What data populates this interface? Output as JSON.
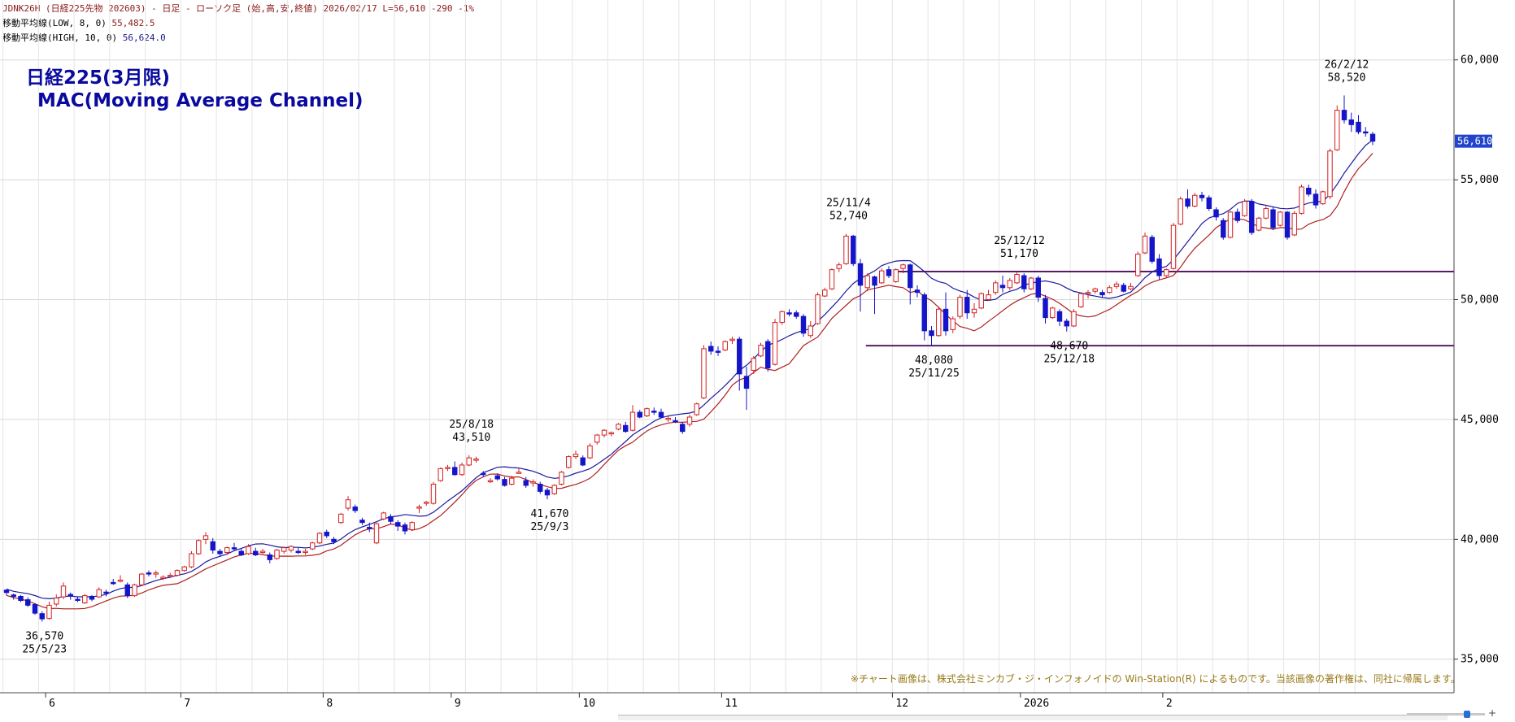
{
  "header": {
    "line1": "JDNK26H (日経225先物 202603) - 日足 - ローソク足 (始,高,安,終値)  2026/02/17 L=56,610 -290 -1%",
    "line2_label": "移動平均線(LOW, 8, 0)",
    "line2_value": "55,482.5",
    "line3_label": "移動平均線(HIGH, 10, 0)",
    "line3_value": "56,624.0"
  },
  "title": {
    "line1": "日経225(3月限)",
    "line2": "MAC(Moving Average Channel)"
  },
  "copyright": "※チャート画像は、株式会社ミンカブ・ジ・インフォノイドの Win-Station(R) によるものです。当該画像の著作権は、同社に帰属します。",
  "colors": {
    "up": "#d22020",
    "down": "#1414c8",
    "ma_high": "#1a1aa0",
    "ma_low": "#b02020",
    "level_line": "#5a1a6a",
    "grid": "#d8d8d8",
    "last_price_bg": "#2244cc"
  },
  "chart_data": {
    "type": "candlestick",
    "y_range": [
      33600,
      62500
    ],
    "y_ticks": [
      {
        "value": 35000,
        "label": "35,000"
      },
      {
        "value": 40000,
        "label": "40,000"
      },
      {
        "value": 45000,
        "label": "45,000"
      },
      {
        "value": 50000,
        "label": "50,000"
      },
      {
        "value": 55000,
        "label": "55,000"
      },
      {
        "value": 60000,
        "label": "60,000"
      }
    ],
    "x_ticks": [
      "6",
      "7",
      "8",
      "9",
      "10",
      "11",
      "12",
      "2026",
      "2"
    ],
    "last_price": {
      "value": 56610,
      "label": "56,610"
    },
    "horizontal_levels": [
      51170,
      48080
    ],
    "candles": [
      [
        37880,
        37920,
        37660,
        37780
      ],
      [
        37680,
        37740,
        37480,
        37620
      ],
      [
        37620,
        37680,
        37380,
        37450
      ],
      [
        37480,
        37580,
        37180,
        37250
      ],
      [
        37280,
        37340,
        36850,
        36920
      ],
      [
        36900,
        37000,
        36570,
        36680
      ],
      [
        36700,
        37400,
        36650,
        37250
      ],
      [
        37300,
        37700,
        37200,
        37550
      ],
      [
        37600,
        38200,
        37500,
        38050
      ],
      [
        37700,
        37780,
        37480,
        37650
      ],
      [
        37500,
        37620,
        37380,
        37450
      ],
      [
        37350,
        37720,
        37300,
        37650
      ],
      [
        37620,
        37680,
        37420,
        37500
      ],
      [
        37600,
        38000,
        37550,
        37900
      ],
      [
        37800,
        37900,
        37620,
        37750
      ],
      [
        38200,
        38350,
        38100,
        38150
      ],
      [
        38300,
        38500,
        38200,
        38300
      ],
      [
        38100,
        38200,
        37550,
        37650
      ],
      [
        37650,
        38150,
        37600,
        38100
      ],
      [
        38100,
        38600,
        38050,
        38550
      ],
      [
        38600,
        38700,
        38450,
        38550
      ],
      [
        38550,
        38700,
        38400,
        38600
      ],
      [
        38400,
        38500,
        38300,
        38420
      ],
      [
        38450,
        38600,
        38380,
        38500
      ],
      [
        38500,
        38750,
        38450,
        38700
      ],
      [
        38700,
        38900,
        38650,
        38850
      ],
      [
        38850,
        39500,
        38800,
        39400
      ],
      [
        39400,
        40000,
        39350,
        39950
      ],
      [
        40000,
        40300,
        39800,
        40150
      ],
      [
        39900,
        40050,
        39400,
        39550
      ],
      [
        39500,
        39600,
        39300,
        39400
      ],
      [
        39450,
        39700,
        39350,
        39650
      ],
      [
        39650,
        39850,
        39500,
        39600
      ],
      [
        39500,
        39600,
        39300,
        39350
      ],
      [
        39400,
        39800,
        39350,
        39700
      ],
      [
        39500,
        39650,
        39300,
        39350
      ],
      [
        39450,
        39600,
        39400,
        39500
      ],
      [
        39350,
        39450,
        39000,
        39150
      ],
      [
        39200,
        39600,
        39150,
        39550
      ],
      [
        39500,
        39700,
        39400,
        39650
      ],
      [
        39550,
        39750,
        39450,
        39700
      ],
      [
        39500,
        39650,
        39380,
        39450
      ],
      [
        39450,
        39600,
        39350,
        39500
      ],
      [
        39600,
        39900,
        39550,
        39850
      ],
      [
        39850,
        40300,
        39800,
        40250
      ],
      [
        40300,
        40400,
        40050,
        40150
      ],
      [
        40000,
        40100,
        39800,
        39900
      ],
      [
        40700,
        41100,
        40650,
        41050
      ],
      [
        41300,
        41800,
        41200,
        41650
      ],
      [
        41350,
        41450,
        41100,
        41200
      ],
      [
        40800,
        40900,
        40600,
        40700
      ],
      [
        40500,
        40700,
        40300,
        40450
      ],
      [
        39850,
        40700,
        39800,
        40650
      ],
      [
        40850,
        41150,
        40800,
        41100
      ],
      [
        40950,
        41050,
        40650,
        40750
      ],
      [
        40700,
        40800,
        40350,
        40550
      ],
      [
        40600,
        40700,
        40200,
        40350
      ],
      [
        40400,
        40750,
        40350,
        40700
      ],
      [
        41300,
        41450,
        41100,
        41350
      ],
      [
        41500,
        41600,
        41400,
        41550
      ],
      [
        41500,
        42400,
        41450,
        42300
      ],
      [
        42450,
        43000,
        42400,
        42950
      ],
      [
        42950,
        43100,
        42850,
        43000
      ],
      [
        43000,
        43250,
        42650,
        42700
      ],
      [
        42700,
        43200,
        42650,
        43100
      ],
      [
        43100,
        43510,
        43050,
        43400
      ],
      [
        43300,
        43450,
        43200,
        43350
      ],
      [
        42750,
        42850,
        42600,
        42700
      ],
      [
        42450,
        42550,
        42350,
        42450
      ],
      [
        42650,
        42750,
        42450,
        42520
      ],
      [
        42500,
        42600,
        42200,
        42250
      ],
      [
        42300,
        42650,
        42250,
        42550
      ],
      [
        42800,
        42950,
        42750,
        42800
      ],
      [
        42450,
        42600,
        42150,
        42250
      ],
      [
        42350,
        42500,
        42200,
        42400
      ],
      [
        42300,
        42400,
        41900,
        42000
      ],
      [
        42050,
        42150,
        41670,
        41850
      ],
      [
        41900,
        42300,
        41850,
        42250
      ],
      [
        42300,
        42850,
        42250,
        42800
      ],
      [
        43000,
        43500,
        42950,
        43450
      ],
      [
        43450,
        43700,
        43350,
        43550
      ],
      [
        43400,
        43500,
        43050,
        43100
      ],
      [
        43400,
        44000,
        43350,
        43900
      ],
      [
        44050,
        44400,
        43950,
        44350
      ],
      [
        44350,
        44600,
        44250,
        44550
      ],
      [
        44400,
        44500,
        44300,
        44450
      ],
      [
        44600,
        44850,
        44550,
        44800
      ],
      [
        44750,
        44900,
        44450,
        44500
      ],
      [
        44550,
        45600,
        44500,
        45300
      ],
      [
        45300,
        45400,
        45050,
        45100
      ],
      [
        45150,
        45500,
        45100,
        45450
      ],
      [
        45350,
        45500,
        45200,
        45300
      ],
      [
        45300,
        45450,
        45050,
        45100
      ],
      [
        45050,
        45150,
        44900,
        45050
      ],
      [
        44950,
        45100,
        44850,
        44900
      ],
      [
        44800,
        44900,
        44400,
        44500
      ],
      [
        44800,
        45200,
        44700,
        45100
      ],
      [
        45200,
        45700,
        45150,
        45650
      ],
      [
        45900,
        48100,
        45850,
        47950
      ],
      [
        48050,
        48250,
        47700,
        47850
      ],
      [
        47850,
        48050,
        47650,
        47800
      ],
      [
        47900,
        48300,
        47850,
        48250
      ],
      [
        48300,
        48450,
        48150,
        48350
      ],
      [
        48350,
        48450,
        46200,
        46900
      ],
      [
        46800,
        47200,
        45400,
        46300
      ],
      [
        47050,
        47650,
        46900,
        47550
      ],
      [
        47650,
        48200,
        47600,
        48100
      ],
      [
        48250,
        48350,
        47000,
        47150
      ],
      [
        47300,
        49200,
        47250,
        49050
      ],
      [
        49050,
        49550,
        48950,
        49500
      ],
      [
        49450,
        49600,
        49300,
        49400
      ],
      [
        49450,
        49550,
        49200,
        49300
      ],
      [
        49300,
        49400,
        48450,
        48600
      ],
      [
        48500,
        49100,
        48400,
        48900
      ],
      [
        49000,
        50300,
        48950,
        50200
      ],
      [
        50150,
        50500,
        50100,
        50400
      ],
      [
        50450,
        51300,
        50400,
        51250
      ],
      [
        51300,
        51550,
        51150,
        51450
      ],
      [
        51500,
        52740,
        51450,
        52650
      ],
      [
        52650,
        52700,
        51400,
        51500
      ],
      [
        51500,
        51700,
        49500,
        50600
      ],
      [
        50500,
        51100,
        50350,
        51000
      ],
      [
        50950,
        51000,
        49400,
        50600
      ],
      [
        50700,
        51300,
        50650,
        51200
      ],
      [
        51250,
        51400,
        50900,
        51000
      ],
      [
        50750,
        51300,
        50700,
        51250
      ],
      [
        51300,
        51500,
        51100,
        51450
      ],
      [
        51450,
        51500,
        49800,
        50500
      ],
      [
        50400,
        50600,
        50100,
        50300
      ],
      [
        50200,
        50300,
        48300,
        48700
      ],
      [
        48700,
        48900,
        48080,
        48500
      ],
      [
        48500,
        49700,
        48450,
        49600
      ],
      [
        49600,
        50300,
        48500,
        48700
      ],
      [
        48750,
        49300,
        48600,
        49200
      ],
      [
        49300,
        50200,
        49200,
        50100
      ],
      [
        50100,
        50400,
        49200,
        49450
      ],
      [
        49450,
        49850,
        49250,
        49600
      ],
      [
        49650,
        50300,
        49600,
        50250
      ],
      [
        50000,
        50400,
        49950,
        50200
      ],
      [
        50300,
        50800,
        50200,
        50700
      ],
      [
        50600,
        51000,
        50300,
        50500
      ],
      [
        50500,
        50900,
        50400,
        50800
      ],
      [
        50700,
        51170,
        50650,
        51050
      ],
      [
        51000,
        51100,
        50300,
        50450
      ],
      [
        50450,
        50950,
        50400,
        50900
      ],
      [
        50900,
        51000,
        49900,
        50100
      ],
      [
        50050,
        50200,
        49000,
        49250
      ],
      [
        49250,
        49700,
        49200,
        49650
      ],
      [
        49500,
        49600,
        48900,
        49100
      ],
      [
        49100,
        49200,
        48670,
        48900
      ],
      [
        48900,
        49600,
        48850,
        49500
      ],
      [
        49700,
        50300,
        49650,
        50250
      ],
      [
        50250,
        50400,
        50050,
        50300
      ],
      [
        50350,
        50500,
        50250,
        50450
      ],
      [
        50300,
        50400,
        50100,
        50200
      ],
      [
        50300,
        50600,
        50250,
        50500
      ],
      [
        50550,
        50750,
        50450,
        50650
      ],
      [
        50600,
        50700,
        50300,
        50350
      ],
      [
        50450,
        50700,
        50400,
        50550
      ],
      [
        51000,
        52000,
        50950,
        51900
      ],
      [
        51950,
        52800,
        51900,
        52650
      ],
      [
        52600,
        52700,
        51500,
        51600
      ],
      [
        51700,
        51900,
        50850,
        51000
      ],
      [
        51000,
        51300,
        50900,
        51250
      ],
      [
        51300,
        53200,
        51250,
        53100
      ],
      [
        53150,
        54300,
        53100,
        54200
      ],
      [
        54200,
        54600,
        53800,
        53900
      ],
      [
        53900,
        54450,
        53850,
        54350
      ],
      [
        54350,
        54500,
        54100,
        54250
      ],
      [
        54250,
        54350,
        53700,
        53800
      ],
      [
        53750,
        53850,
        53300,
        53450
      ],
      [
        53300,
        53400,
        52500,
        52600
      ],
      [
        52600,
        53700,
        52550,
        53650
      ],
      [
        53650,
        53800,
        53200,
        53300
      ],
      [
        53500,
        54200,
        53450,
        54100
      ],
      [
        54100,
        54200,
        52700,
        52800
      ],
      [
        52900,
        53450,
        52850,
        53400
      ],
      [
        53400,
        53900,
        53350,
        53800
      ],
      [
        53750,
        53850,
        52900,
        53000
      ],
      [
        53100,
        53700,
        53050,
        53650
      ],
      [
        53650,
        53700,
        52500,
        52600
      ],
      [
        52700,
        53700,
        52650,
        53600
      ],
      [
        53600,
        54800,
        53550,
        54700
      ],
      [
        54650,
        54800,
        54300,
        54400
      ],
      [
        54400,
        54600,
        53800,
        53950
      ],
      [
        54000,
        54550,
        53950,
        54500
      ],
      [
        54300,
        56300,
        54200,
        56200
      ],
      [
        56250,
        58100,
        56200,
        57900
      ],
      [
        57900,
        58520,
        57350,
        57500
      ],
      [
        57500,
        57800,
        57000,
        57300
      ],
      [
        57400,
        57700,
        56900,
        57000
      ],
      [
        57000,
        57200,
        56800,
        56950
      ],
      [
        56900,
        57000,
        56450,
        56610
      ]
    ],
    "annotations": [
      {
        "date": "25/5/23",
        "value": "36,570",
        "position": "below"
      },
      {
        "date": "25/8/18",
        "value": "43,510",
        "position": "above"
      },
      {
        "date": "25/9/3",
        "value": "41,670",
        "position": "below"
      },
      {
        "date": "25/11/4",
        "value": "52,740",
        "position": "above"
      },
      {
        "date": "25/11/25",
        "value": "48,080",
        "position": "below"
      },
      {
        "date": "25/12/12",
        "value": "51,170",
        "position": "above"
      },
      {
        "date": "25/12/18",
        "value": "48,670",
        "position": "below"
      },
      {
        "date": "26/2/12",
        "value": "58,520",
        "position": "above"
      }
    ]
  }
}
